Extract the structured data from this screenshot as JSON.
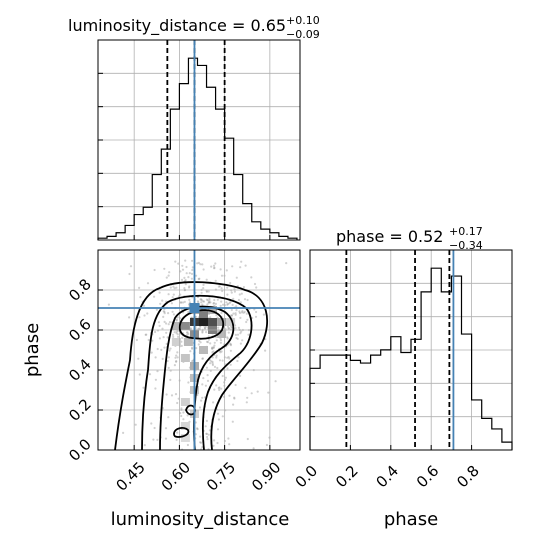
{
  "chart_data": [
    {
      "type": "histogram",
      "panel": "luminosity_distance-marginal",
      "title": {
        "param": "luminosity_distance",
        "median": "0.65",
        "upper": "+0.10",
        "lower": "−0.09"
      },
      "bin_edges": [
        0.33,
        0.36,
        0.39,
        0.42,
        0.45,
        0.48,
        0.51,
        0.54,
        0.57,
        0.6,
        0.63,
        0.66,
        0.69,
        0.72,
        0.75,
        0.78,
        0.81,
        0.84,
        0.87,
        0.9,
        0.93,
        0.96,
        0.99
      ],
      "counts": [
        0.5,
        1,
        2,
        4,
        7,
        9,
        18,
        25,
        36,
        43,
        50,
        48,
        42,
        36,
        28,
        18,
        10,
        5,
        3,
        2,
        1,
        0.5
      ],
      "quantiles": [
        0.56,
        0.65,
        0.75
      ],
      "truth": 0.65,
      "xlim": [
        0.33,
        1.0
      ],
      "grid": true
    },
    {
      "type": "histogram",
      "panel": "phase-marginal",
      "title": {
        "param": "phase",
        "median": "0.52",
        "upper": "+0.17",
        "lower": "−0.34"
      },
      "bin_edges": [
        0.0,
        0.05,
        0.1,
        0.15,
        0.2,
        0.25,
        0.3,
        0.35,
        0.4,
        0.45,
        0.5,
        0.55,
        0.6,
        0.65,
        0.7,
        0.75,
        0.8,
        0.85,
        0.9,
        0.95,
        1.0
      ],
      "counts": [
        31,
        36,
        36,
        36,
        34,
        33,
        36,
        38,
        43,
        37,
        42,
        60,
        69,
        60,
        66,
        44,
        19,
        12,
        8,
        3
      ],
      "quantiles": [
        0.18,
        0.52,
        0.69
      ],
      "truth": 0.71,
      "xlim": [
        0.0,
        1.0
      ],
      "xticks": [
        "0.0",
        "0.2",
        "0.4",
        "0.6",
        "0.8"
      ],
      "xlabel": "phase",
      "grid": true
    },
    {
      "type": "scatter",
      "panel": "2d-density",
      "xlabel": "luminosity_distance",
      "ylabel": "phase",
      "xlim": [
        0.33,
        1.0
      ],
      "ylim": [
        0.0,
        1.0
      ],
      "xticks": [
        "0.45",
        "0.60",
        "0.75",
        "0.90"
      ],
      "yticks": [
        "0.0",
        "0.2",
        "0.4",
        "0.6",
        "0.8"
      ],
      "truth": {
        "x": 0.65,
        "y": 0.71
      },
      "density_center": {
        "x": 0.67,
        "y": 0.63
      },
      "grid": true
    }
  ],
  "colors": {
    "truth": "#4682b4",
    "line": "#000000",
    "grid": "#b0b0b0"
  }
}
